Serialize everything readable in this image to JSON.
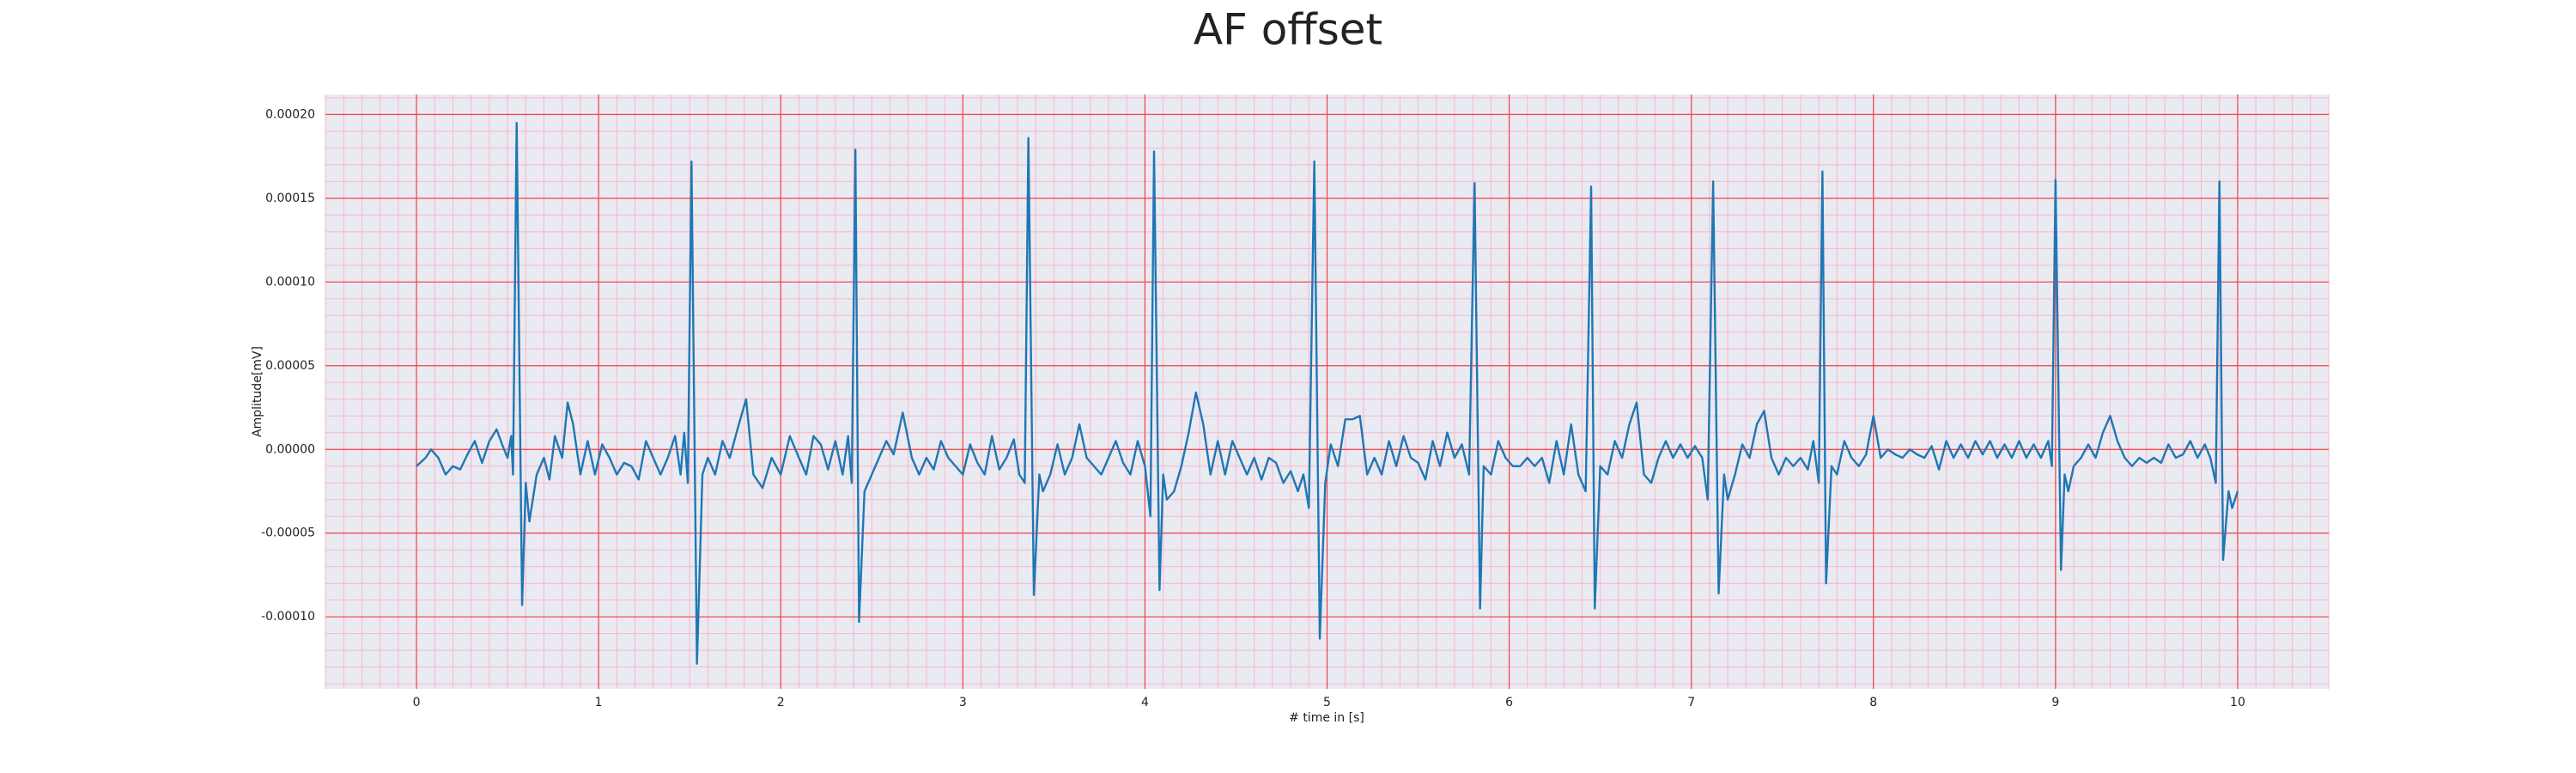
{
  "chart_data": {
    "type": "line",
    "title": "AF offset",
    "xlabel": "# time in [s]",
    "ylabel": "Amplitude[mV]",
    "color": "#1f77b4",
    "grid": true,
    "xlim": [
      -0.5,
      10.5
    ],
    "ylim": [
      -0.000143,
      0.000212
    ],
    "xticks": [
      0,
      1,
      2,
      3,
      4,
      5,
      6,
      7,
      8,
      9,
      10
    ],
    "yticks": [
      {
        "value": -0.0001,
        "label": "-0.00010"
      },
      {
        "value": -5e-05,
        "label": "-0.00005"
      },
      {
        "value": 0,
        "label": "0.00000"
      },
      {
        "value": 5e-05,
        "label": "0.00005"
      },
      {
        "value": 0.0001,
        "label": "0.00010"
      },
      {
        "value": 0.00015,
        "label": "0.00015"
      },
      {
        "value": 0.0002,
        "label": "0.00020"
      }
    ],
    "x": [
      0,
      0.05,
      0.08,
      0.12,
      0.16,
      0.2,
      0.24,
      0.28,
      0.32,
      0.36,
      0.4,
      0.44,
      0.47,
      0.5,
      0.52,
      0.53,
      0.55,
      0.58,
      0.6,
      0.62,
      0.66,
      0.7,
      0.73,
      0.76,
      0.8,
      0.83,
      0.86,
      0.9,
      0.94,
      0.98,
      1.02,
      1.06,
      1.1,
      1.14,
      1.18,
      1.22,
      1.26,
      1.3,
      1.34,
      1.38,
      1.42,
      1.45,
      1.47,
      1.49,
      1.51,
      1.54,
      1.57,
      1.6,
      1.64,
      1.68,
      1.72,
      1.77,
      1.81,
      1.85,
      1.9,
      1.95,
      2.0,
      2.05,
      2.1,
      2.14,
      2.18,
      2.22,
      2.26,
      2.3,
      2.34,
      2.37,
      2.39,
      2.41,
      2.43,
      2.46,
      2.5,
      2.54,
      2.58,
      2.62,
      2.67,
      2.72,
      2.76,
      2.8,
      2.84,
      2.88,
      2.92,
      2.96,
      3.0,
      3.04,
      3.08,
      3.12,
      3.16,
      3.2,
      3.24,
      3.28,
      3.31,
      3.34,
      3.36,
      3.39,
      3.42,
      3.44,
      3.48,
      3.52,
      3.56,
      3.6,
      3.64,
      3.68,
      3.72,
      3.76,
      3.8,
      3.84,
      3.88,
      3.92,
      3.96,
      4.0,
      4.03,
      4.05,
      4.08,
      4.1,
      4.12,
      4.16,
      4.2,
      4.24,
      4.28,
      4.32,
      4.36,
      4.4,
      4.44,
      4.48,
      4.52,
      4.56,
      4.6,
      4.64,
      4.68,
      4.72,
      4.76,
      4.8,
      4.84,
      4.87,
      4.9,
      4.93,
      4.96,
      4.99,
      5.02,
      5.06,
      5.1,
      5.14,
      5.18,
      5.22,
      5.26,
      5.3,
      5.34,
      5.38,
      5.42,
      5.46,
      5.5,
      5.54,
      5.58,
      5.62,
      5.66,
      5.7,
      5.74,
      5.78,
      5.81,
      5.84,
      5.86,
      5.9,
      5.94,
      5.98,
      6.02,
      6.06,
      6.1,
      6.14,
      6.18,
      6.22,
      6.26,
      6.3,
      6.34,
      6.38,
      6.42,
      6.45,
      6.47,
      6.5,
      6.54,
      6.58,
      6.62,
      6.66,
      6.7,
      6.74,
      6.78,
      6.82,
      6.86,
      6.9,
      6.94,
      6.98,
      7.02,
      7.06,
      7.09,
      7.12,
      7.15,
      7.18,
      7.2,
      7.24,
      7.28,
      7.32,
      7.36,
      7.4,
      7.44,
      7.48,
      7.52,
      7.56,
      7.6,
      7.64,
      7.67,
      7.7,
      7.72,
      7.74,
      7.77,
      7.8,
      7.84,
      7.88,
      7.92,
      7.96,
      8.0,
      8.04,
      8.08,
      8.12,
      8.16,
      8.2,
      8.24,
      8.28,
      8.32,
      8.36,
      8.4,
      8.44,
      8.48,
      8.52,
      8.56,
      8.6,
      8.64,
      8.68,
      8.72,
      8.76,
      8.8,
      8.84,
      8.88,
      8.92,
      8.96,
      8.98,
      9.0,
      9.03,
      9.05,
      9.07,
      9.1,
      9.14,
      9.18,
      9.22,
      9.26,
      9.3,
      9.34,
      9.38,
      9.42,
      9.46,
      9.5,
      9.54,
      9.58,
      9.62,
      9.66,
      9.7,
      9.74,
      9.78,
      9.82,
      9.85,
      9.88,
      9.9,
      9.92,
      9.95,
      9.97,
      10.0
    ],
    "values": [
      -1e-05,
      -5e-06,
      0,
      -5e-06,
      -1.5e-05,
      -1e-05,
      -1.2e-05,
      -3e-06,
      5e-06,
      -8e-06,
      5e-06,
      1.2e-05,
      3e-06,
      -5e-06,
      8e-06,
      -1.5e-05,
      0.000195,
      -9.3e-05,
      -2e-05,
      -4.3e-05,
      -1.5e-05,
      -5e-06,
      -1.8e-05,
      8e-06,
      -5e-06,
      2.8e-05,
      1.5e-05,
      -1.5e-05,
      5e-06,
      -1.5e-05,
      3e-06,
      -5e-06,
      -1.5e-05,
      -8e-06,
      -1e-05,
      -1.8e-05,
      5e-06,
      -5e-06,
      -1.5e-05,
      -5e-06,
      8e-06,
      -1.5e-05,
      1e-05,
      -2e-05,
      0.000172,
      -0.000128,
      -1.5e-05,
      -5e-06,
      -1.5e-05,
      5e-06,
      -5e-06,
      1.5e-05,
      3e-05,
      -1.5e-05,
      -2.3e-05,
      -5e-06,
      -1.5e-05,
      8e-06,
      -5e-06,
      -1.5e-05,
      8e-06,
      3e-06,
      -1.2e-05,
      5e-06,
      -1.5e-05,
      8e-06,
      -2e-05,
      0.000179,
      -0.000103,
      -2.5e-05,
      -1.5e-05,
      -5e-06,
      5e-06,
      -3e-06,
      2.2e-05,
      -5e-06,
      -1.5e-05,
      -5e-06,
      -1.2e-05,
      5e-06,
      -5e-06,
      -1e-05,
      -1.5e-05,
      3e-06,
      -8e-06,
      -1.5e-05,
      8e-06,
      -1.2e-05,
      -5e-06,
      6e-06,
      -1.5e-05,
      -2e-05,
      0.000186,
      -8.7e-05,
      -1.5e-05,
      -2.5e-05,
      -1.5e-05,
      3e-06,
      -1.5e-05,
      -5e-06,
      1.5e-05,
      -5e-06,
      -1e-05,
      -1.5e-05,
      -5e-06,
      5e-06,
      -8e-06,
      -1.5e-05,
      5e-06,
      -1e-05,
      -4e-05,
      0.000178,
      -8.4e-05,
      -1.5e-05,
      -3e-05,
      -2.5e-05,
      -1e-05,
      1e-05,
      3.4e-05,
      1.5e-05,
      -1.5e-05,
      5e-06,
      -1.5e-05,
      5e-06,
      -5e-06,
      -1.5e-05,
      -5e-06,
      -1.8e-05,
      -5e-06,
      -8e-06,
      -2e-05,
      -1.3e-05,
      -2.5e-05,
      -1.5e-05,
      -3.5e-05,
      0.000172,
      -0.000113,
      -2e-05,
      3e-06,
      -1e-05,
      1.8e-05,
      1.8e-05,
      2e-05,
      -1.5e-05,
      -5e-06,
      -1.5e-05,
      5e-06,
      -1e-05,
      8e-06,
      -5e-06,
      -8e-06,
      -1.8e-05,
      5e-06,
      -1e-05,
      1e-05,
      -5e-06,
      3e-06,
      -1.5e-05,
      0.000159,
      -9.5e-05,
      -1e-05,
      -1.5e-05,
      5e-06,
      -5e-06,
      -1e-05,
      -1e-05,
      -5e-06,
      -1e-05,
      -5e-06,
      -2e-05,
      5e-06,
      -1.5e-05,
      1.5e-05,
      -1.5e-05,
      -2.5e-05,
      0.000157,
      -9.5e-05,
      -1e-05,
      -1.5e-05,
      5e-06,
      -5e-06,
      1.5e-05,
      2.8e-05,
      -1.5e-05,
      -2e-05,
      -5e-06,
      5e-06,
      -5e-06,
      3e-06,
      -5e-06,
      2e-06,
      -5e-06,
      -3e-05,
      0.00016,
      -8.6e-05,
      -1.5e-05,
      -3e-05,
      -1.5e-05,
      3e-06,
      -5e-06,
      1.5e-05,
      2.3e-05,
      -5e-06,
      -1.5e-05,
      -5e-06,
      -1e-05,
      -5e-06,
      -1.2e-05,
      5e-06,
      -2e-05,
      0.000166,
      -8e-05,
      -1e-05,
      -1.5e-05,
      5e-06,
      -5e-06,
      -1e-05,
      -3e-06,
      2e-05,
      -5e-06,
      0,
      -3e-06,
      -5e-06,
      0,
      -3e-06,
      -5e-06,
      2e-06,
      -1.2e-05,
      5e-06,
      -5e-06,
      3e-06,
      -5e-06,
      5e-06,
      -3e-06,
      5e-06,
      -5e-06,
      3e-06,
      -5e-06,
      5e-06,
      -5e-06,
      3e-06,
      -5e-06,
      5e-06,
      -1e-05,
      0.000161,
      -7.2e-05,
      -1.5e-05,
      -2.5e-05,
      -1e-05,
      -5e-06,
      3e-06,
      -5e-06,
      1e-05,
      2e-05,
      5e-06,
      -5e-06,
      -1e-05,
      -5e-06,
      -8e-06,
      -5e-06,
      -8e-06,
      3e-06,
      -5e-06,
      -3e-06,
      5e-06,
      -5e-06,
      3e-06,
      -5e-06,
      -2e-05,
      0.00016,
      -6.6e-05,
      -2.5e-05,
      -3.5e-05,
      -2.5e-05
    ]
  }
}
